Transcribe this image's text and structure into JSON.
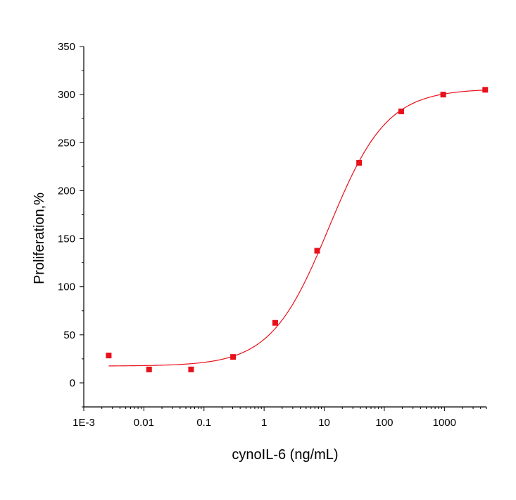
{
  "chart_data": {
    "type": "scatter",
    "title": "",
    "xlabel": "cynoIL-6 (ng/mL)",
    "ylabel": "Proliferation,%",
    "x_scale": "log",
    "xlim": [
      0.001,
      5000
    ],
    "ylim": [
      -25,
      350
    ],
    "x_ticks": [
      0.001,
      0.01,
      0.1,
      1,
      10,
      100,
      1000
    ],
    "x_tick_labels": [
      "1E-3",
      "0.01",
      "0.1",
      "1",
      "10",
      "100",
      "1000"
    ],
    "y_ticks": [
      0,
      50,
      100,
      150,
      200,
      250,
      300,
      350
    ],
    "y_tick_labels": [
      "0",
      "50",
      "100",
      "150",
      "200",
      "250",
      "300",
      "350"
    ],
    "grid": false,
    "colors": {
      "series": "#e8101a",
      "axis": "#000000"
    },
    "series": [
      {
        "marker": "square",
        "x": [
          0.0026,
          0.0122,
          0.061,
          0.305,
          1.53,
          7.63,
          38.1,
          191,
          954,
          4770
        ],
        "y": [
          28.5,
          14,
          14,
          27,
          62.5,
          137.5,
          229,
          282.5,
          300,
          305
        ]
      }
    ],
    "fit_curve": {
      "model": "4PL",
      "bottom": 17.5,
      "top": 306,
      "ec50": 12,
      "hill": 0.9,
      "x_range": [
        0.0026,
        4770
      ]
    }
  }
}
